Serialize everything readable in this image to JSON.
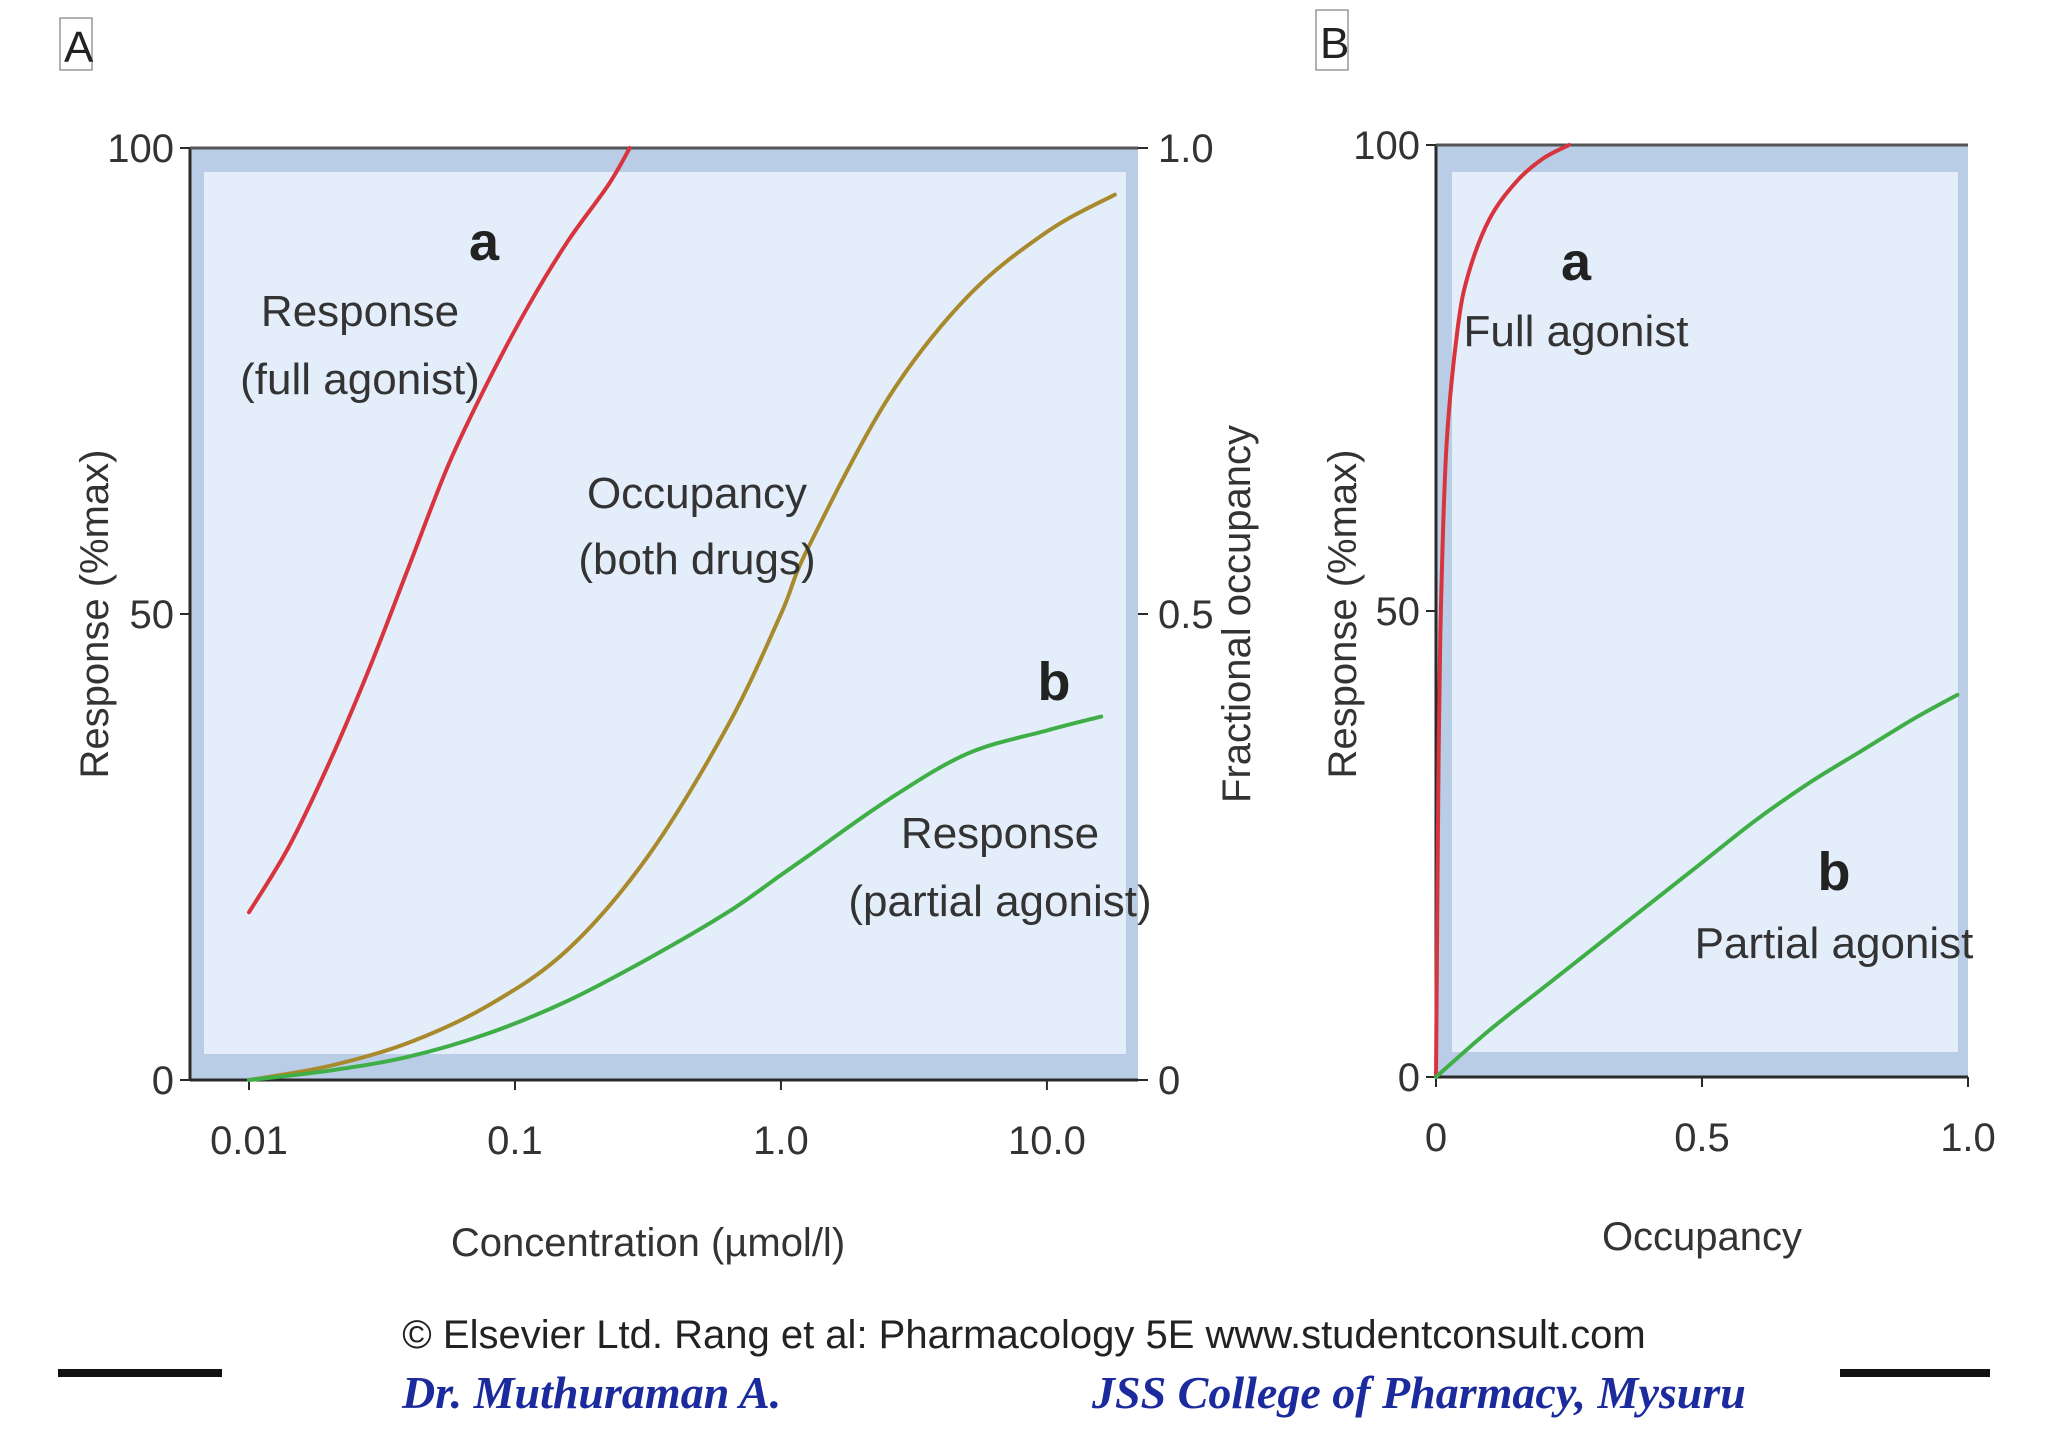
{
  "panels": {
    "A": {
      "letter": "A",
      "y_axis_title": "Response (%max)",
      "y2_axis_title": "Fractional occupancy",
      "x_axis_title": "Concentration (µmol/l)",
      "annotations": {
        "a_letter": "a",
        "full_line1": "Response",
        "full_line2": "(full agonist)",
        "occ_line1": "Occupancy",
        "occ_line2": "(both drugs)",
        "b_letter": "b",
        "partial_line1": "Response",
        "partial_line2": "(partial agonist)"
      }
    },
    "B": {
      "letter": "B",
      "y_axis_title": "Response (%max)",
      "x_axis_title": "Occupancy",
      "annotations": {
        "a_letter": "a",
        "full_label": "Full agonist",
        "b_letter": "b",
        "partial_label": "Partial agonist"
      }
    }
  },
  "colors": {
    "full": "#d8343e",
    "occupancy": "#a88a2c",
    "partial": "#3fae47",
    "plot_bg": "#e4eefb",
    "plot_frame": "#b9cde7",
    "axis": "#2a2a2a"
  },
  "chart_data": [
    {
      "type": "line",
      "panel": "A",
      "title": "",
      "xlabel": "Concentration (µmol/l)",
      "ylabel": "Response (%max)",
      "y2label": "Fractional occupancy",
      "xscale": "log",
      "xlim": [
        0.006,
        22
      ],
      "ylim": [
        0,
        100
      ],
      "y2lim": [
        0,
        1
      ],
      "xticks": [
        0.01,
        0.1,
        1.0,
        10.0
      ],
      "xtick_labels": [
        "0.01",
        "0.1",
        "1.0",
        "10.0"
      ],
      "yticks": [
        0,
        50,
        100
      ],
      "ytick_labels": [
        "0",
        "50",
        "100"
      ],
      "y2ticks": [
        0,
        0.5,
        1.0
      ],
      "y2tick_labels": [
        "0",
        "0.5",
        "1.0"
      ],
      "series": [
        {
          "name": "Response (full agonist)",
          "label": "a",
          "color_key": "full",
          "x": [
            0.01,
            0.0141,
            0.02,
            0.0282,
            0.0398,
            0.0562,
            0.0794,
            0.112,
            0.158,
            0.224,
            0.27
          ],
          "y": [
            18,
            25,
            34,
            44,
            55,
            66,
            75,
            83,
            90,
            96,
            100
          ]
        },
        {
          "name": "Occupancy (both drugs)",
          "color_key": "occupancy",
          "x": [
            0.01,
            0.02,
            0.0398,
            0.0794,
            0.158,
            0.316,
            0.631,
            1.0,
            1.26,
            2.51,
            5.01,
            10.0,
            18.0
          ],
          "y": [
            0,
            1.5,
            4,
            8,
            14,
            24,
            38,
            50,
            57,
            73,
            84,
            91,
            95
          ]
        },
        {
          "name": "Response (partial agonist)",
          "label": "b",
          "color_key": "partial",
          "x": [
            0.01,
            0.02,
            0.0398,
            0.0794,
            0.158,
            0.316,
            0.631,
            1.0,
            1.26,
            2.51,
            5.01,
            10.0,
            16.0
          ],
          "y": [
            0,
            1,
            2.5,
            5,
            8.5,
            13,
            18,
            22,
            24,
            30,
            35,
            37.5,
            39
          ]
        }
      ]
    },
    {
      "type": "line",
      "panel": "B",
      "title": "",
      "xlabel": "Occupancy",
      "ylabel": "Response (%max)",
      "xlim": [
        0,
        1.0
      ],
      "ylim": [
        0,
        100
      ],
      "xticks": [
        0,
        0.5,
        1.0
      ],
      "xtick_labels": [
        "0",
        "0.5",
        "1.0"
      ],
      "yticks": [
        0,
        50,
        100
      ],
      "ytick_labels": [
        "0",
        "50",
        "100"
      ],
      "series": [
        {
          "name": "Full agonist",
          "label": "a",
          "color_key": "full",
          "x": [
            0,
            0.005,
            0.01,
            0.02,
            0.04,
            0.06,
            0.1,
            0.15,
            0.2,
            0.25
          ],
          "y": [
            0,
            35,
            52,
            68,
            80,
            86,
            92,
            96,
            98.5,
            100
          ]
        },
        {
          "name": "Partial agonist",
          "label": "b",
          "color_key": "partial",
          "x": [
            0,
            0.1,
            0.2,
            0.3,
            0.4,
            0.5,
            0.6,
            0.7,
            0.8,
            0.9,
            0.98
          ],
          "y": [
            0,
            5,
            9.5,
            14,
            18.5,
            23,
            27.5,
            31.5,
            35,
            38.5,
            41
          ]
        }
      ]
    }
  ],
  "copyright": "© Elsevier Ltd. Rang et al: Pharmacology 5E www.studentconsult.com",
  "footer": {
    "author": "Dr. Muthuraman A.",
    "institution": "JSS College of Pharmacy, Mysuru"
  }
}
